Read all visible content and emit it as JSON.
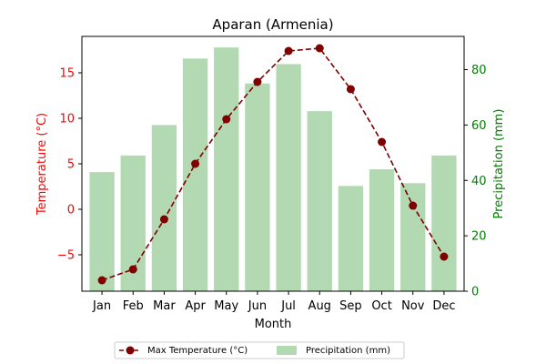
{
  "chart_data": {
    "type": "bar",
    "title": "Aparan (Armenia)",
    "xlabel": "Month",
    "ylabel_left": "Temperature (°C)",
    "ylabel_right": "Precipitation (mm)",
    "categories": [
      "Jan",
      "Feb",
      "Mar",
      "Apr",
      "May",
      "Jun",
      "Jul",
      "Aug",
      "Sep",
      "Oct",
      "Nov",
      "Dec"
    ],
    "series": [
      {
        "name": "Max Temperature (°C)",
        "type": "line",
        "axis": "left",
        "color": "#800000",
        "values": [
          -7.8,
          -6.6,
          -1.1,
          5.0,
          9.9,
          14.0,
          17.4,
          17.7,
          13.2,
          7.4,
          0.4,
          -5.2
        ]
      },
      {
        "name": "Precipitation (mm)",
        "type": "bar",
        "axis": "right",
        "color": "#b2d9b2",
        "values": [
          43,
          49,
          60,
          84,
          88,
          75,
          82,
          65,
          38,
          44,
          39,
          49
        ]
      }
    ],
    "ylim_left": [
      -9,
      19
    ],
    "yticks_left": [
      -5,
      0,
      5,
      10,
      15
    ],
    "ylim_right": [
      0,
      92
    ],
    "yticks_right": [
      0,
      20,
      40,
      60,
      80
    ],
    "left_axis_color": "#ff0000",
    "right_axis_color": "#008000",
    "grid": false,
    "legend_position": "bottom-center"
  }
}
